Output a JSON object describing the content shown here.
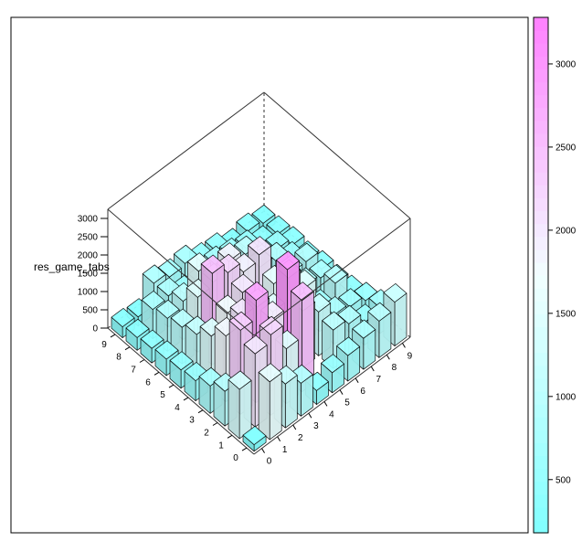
{
  "chart_data": {
    "type": "bar3d",
    "zlabel": "res_game_tabs",
    "x_categories": [
      "0",
      "1",
      "2",
      "3",
      "4",
      "5",
      "6",
      "7",
      "8",
      "9"
    ],
    "y_categories": [
      "0",
      "1",
      "2",
      "3",
      "4",
      "5",
      "6",
      "7",
      "8",
      "9"
    ],
    "z_ticks": [
      "0",
      "500",
      "1000",
      "1500",
      "2000",
      "2500",
      "3000"
    ],
    "zlim": [
      0,
      3250
    ],
    "colorkey": {
      "ticks": [
        "500",
        "1000",
        "1500",
        "2000",
        "2500",
        "3000"
      ],
      "range": [
        180,
        3280
      ],
      "low_color": "#80FFFF",
      "mid_color": "#F2FFFF",
      "high_color": "#FF80FF"
    },
    "bar_alpha": 0.8,
    "values": [
      [
        180,
        1580,
        1200,
        900,
        380,
        550,
        700,
        850,
        1000,
        1200
      ],
      [
        1350,
        2000,
        2200,
        1500,
        2500,
        0,
        1050,
        900,
        620,
        700
      ],
      [
        950,
        2300,
        2800,
        1950,
        3000,
        1550,
        1200,
        800,
        700,
        550
      ],
      [
        750,
        1800,
        2000,
        1950,
        1500,
        2100,
        1500,
        650,
        1000,
        400
      ],
      [
        550,
        1450,
        1750,
        2000,
        1100,
        1600,
        1400,
        900,
        800,
        350
      ],
      [
        500,
        1150,
        2500,
        2200,
        1900,
        2050,
        900,
        900,
        900,
        380
      ],
      [
        450,
        1000,
        1500,
        1600,
        1850,
        1200,
        1050,
        900,
        600,
        300
      ],
      [
        400,
        900,
        1050,
        1550,
        700,
        600,
        1050,
        500,
        550,
        350
      ],
      [
        350,
        800,
        850,
        600,
        550,
        750,
        650,
        550,
        350,
        300
      ],
      [
        300,
        250,
        850,
        700,
        750,
        500,
        450,
        250,
        350,
        250
      ]
    ]
  }
}
